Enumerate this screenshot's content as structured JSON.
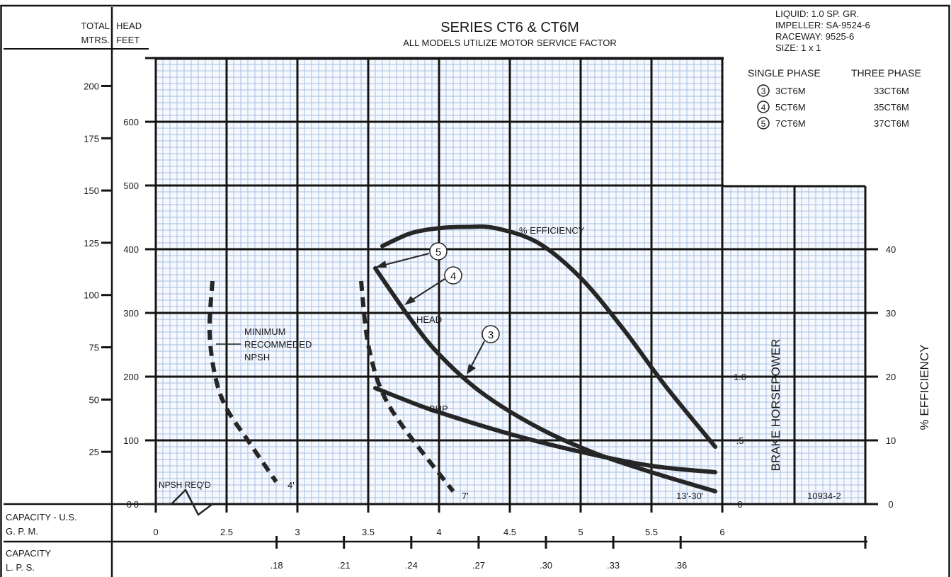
{
  "title": "SERIES  CT6 & CT6M",
  "subtitle": "ALL MODELS UTILIZE MOTOR SERVICE FACTOR",
  "spec": [
    "LIQUID: 1.0 SP. GR.",
    "IMPELLER: SA-9524-6",
    "RACEWAY: 9525-6",
    "SIZE:  1 x 1"
  ],
  "legend": {
    "single_header": "SINGLE PHASE",
    "three_header": "THREE PHASE",
    "rows": [
      {
        "num": "3",
        "single": "3CT6M",
        "three": "33CT6M"
      },
      {
        "num": "4",
        "single": "5CT6M",
        "three": "35CT6M"
      },
      {
        "num": "5",
        "single": "7CT6M",
        "three": "37CT6M"
      }
    ]
  },
  "axis_labels": {
    "total_head_left": "TOTAL",
    "total_head_right": "HEAD",
    "mtrs": "MTRS.",
    "feet": "FEET",
    "capacity_gpm_1": "CAPACITY - U.S.",
    "capacity_gpm_2": "G. P. M.",
    "capacity_lps_1": "CAPACITY",
    "capacity_lps_2": "L. P. S.",
    "bhp": "BRAKE HORSEPOWER",
    "efficiency": "% EFFICIENCY"
  },
  "annotations": {
    "efficiency_curve": "% EFFICIENCY",
    "head_curve": "HEAD",
    "bhp_curve": "BHP",
    "npsh_1": "MINIMUM",
    "npsh_2": "RECOMMEDED",
    "npsh_3": "NPSH",
    "npsh_req": "NPSH REQ'D",
    "npsh_4ft": "4'",
    "npsh_7ft": "7'",
    "npsh_13_30ft": "13'-30'",
    "drawing_no": "10934-2",
    "callout_3": "3",
    "callout_4": "4",
    "callout_5": "5"
  },
  "chart_data": {
    "type": "line",
    "x_label": "CAPACITY - U.S. G. P. M.",
    "x_ticks": [
      "0",
      "2.5",
      "3",
      "3.5",
      "4",
      "4.5",
      "5",
      "5.5",
      "6"
    ],
    "x_ticks_lps": [
      ".18",
      ".21",
      ".24",
      ".27",
      ".30",
      ".33",
      ".36"
    ],
    "feet_ticks": [
      "0",
      "100",
      "200",
      "300",
      "400",
      "500",
      "600"
    ],
    "mtrs_ticks": [
      "0",
      "25",
      "50",
      "75",
      "100",
      "125",
      "150",
      "175",
      "200"
    ],
    "bhp_ticks": [
      "0",
      ".5",
      "1.0"
    ],
    "eff_ticks": [
      "0",
      "10",
      "20",
      "30",
      "40"
    ],
    "series": [
      {
        "name": "HEAD",
        "x": [
          3.55,
          3.8,
          4.0,
          4.3,
          4.7,
          5.1,
          5.5,
          5.95
        ],
        "y": [
          370,
          290,
          235,
          175,
          120,
          80,
          50,
          20
        ]
      },
      {
        "name": "% EFFICIENCY",
        "x": [
          3.6,
          3.8,
          4.0,
          4.2,
          4.4,
          4.7,
          5.0,
          5.3,
          5.6,
          5.95
        ],
        "y": [
          40.5,
          42.5,
          43.3,
          43.5,
          43.3,
          41.0,
          35.5,
          27.5,
          18.5,
          9.0
        ]
      },
      {
        "name": "BHP",
        "x": [
          3.55,
          3.8,
          4.0,
          4.5,
          5.0,
          5.5,
          5.95
        ],
        "y": [
          0.91,
          0.8,
          0.72,
          0.55,
          0.41,
          0.3,
          0.25
        ]
      },
      {
        "name": "NPSH 4'",
        "x": [
          2.4,
          2.38,
          2.42,
          2.5,
          2.65,
          2.85
        ],
        "y": [
          350,
          270,
          200,
          150,
          100,
          35
        ]
      },
      {
        "name": "NPSH 7'",
        "x": [
          3.45,
          3.48,
          3.52,
          3.6,
          3.75,
          4.1
        ],
        "y": [
          350,
          280,
          230,
          175,
          120,
          20
        ]
      }
    ]
  }
}
